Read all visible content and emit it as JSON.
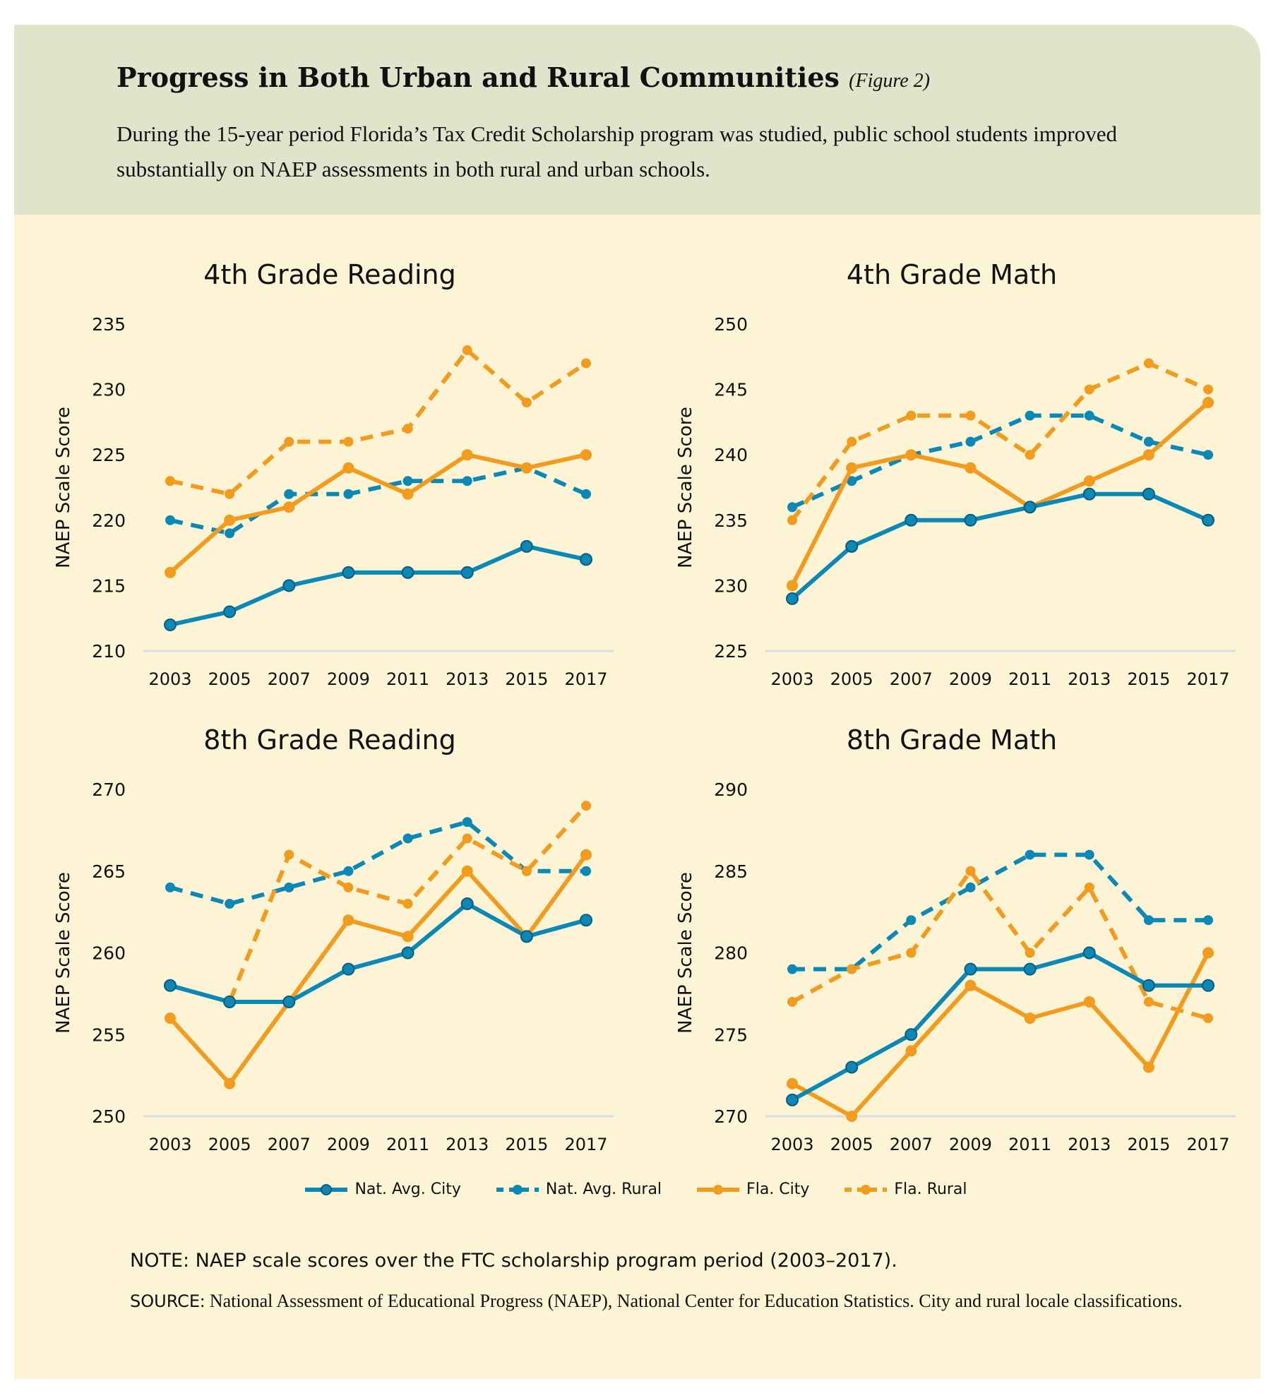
{
  "header": {
    "title": "Progress in Both Urban and Rural Communities",
    "figure_label": "(Figure 2)",
    "subtitle": "During the 15-year period Florida’s Tax Credit Scholarship program was studied, public school students improved substantially on NAEP assessments in both rural and urban schools."
  },
  "colors": {
    "header_bg": "#e1e3cb",
    "panel_bg": "#fdf3d5",
    "blue": "#0a88b6",
    "orange": "#f29b1d"
  },
  "legend": [
    {
      "name": "Nat. Avg. City",
      "color": "#0a88b6",
      "dashed": false
    },
    {
      "name": "Nat. Avg. Rural",
      "color": "#0a88b6",
      "dashed": true
    },
    {
      "name": "Fla. City",
      "color": "#f29b1d",
      "dashed": false
    },
    {
      "name": "Fla. Rural",
      "color": "#f29b1d",
      "dashed": true
    }
  ],
  "chart_data": [
    {
      "type": "line",
      "title": "4th Grade Reading",
      "ylabel": "NAEP Scale Score",
      "xlabel": "",
      "categories": [
        "2003",
        "2005",
        "2007",
        "2009",
        "2011",
        "2013",
        "2015",
        "2017"
      ],
      "ylim": [
        210,
        235
      ],
      "yticks": [
        210,
        215,
        220,
        225,
        230,
        235
      ],
      "grid": false,
      "series": [
        {
          "name": "Nat. Avg. City",
          "values": [
            212,
            213,
            215,
            216,
            216,
            216,
            218,
            217
          ]
        },
        {
          "name": "Nat. Avg. Rural",
          "values": [
            220,
            219,
            222,
            222,
            223,
            223,
            224,
            222
          ]
        },
        {
          "name": "Fla. City",
          "values": [
            216,
            220,
            221,
            224,
            222,
            225,
            224,
            225
          ]
        },
        {
          "name": "Fla. Rural",
          "values": [
            223,
            222,
            226,
            226,
            227,
            233,
            229,
            232
          ]
        }
      ]
    },
    {
      "type": "line",
      "title": "4th Grade Math",
      "ylabel": "NAEP Scale Score",
      "xlabel": "",
      "categories": [
        "2003",
        "2005",
        "2007",
        "2009",
        "2011",
        "2013",
        "2015",
        "2017"
      ],
      "ylim": [
        225,
        250
      ],
      "yticks": [
        225,
        230,
        235,
        240,
        245,
        250
      ],
      "grid": false,
      "series": [
        {
          "name": "Nat. Avg. City",
          "values": [
            229,
            233,
            235,
            235,
            236,
            237,
            237,
            235
          ]
        },
        {
          "name": "Nat. Avg. Rural",
          "values": [
            236,
            238,
            240,
            241,
            243,
            243,
            241,
            240
          ]
        },
        {
          "name": "Fla. City",
          "values": [
            230,
            239,
            240,
            239,
            236,
            238,
            240,
            244
          ]
        },
        {
          "name": "Fla. Rural",
          "values": [
            235,
            241,
            243,
            243,
            240,
            245,
            247,
            245
          ]
        }
      ]
    },
    {
      "type": "line",
      "title": "8th Grade Reading",
      "ylabel": "NAEP Scale Score",
      "xlabel": "",
      "categories": [
        "2003",
        "2005",
        "2007",
        "2009",
        "2011",
        "2013",
        "2015",
        "2017"
      ],
      "ylim": [
        250,
        270
      ],
      "yticks": [
        250,
        255,
        260,
        265,
        270
      ],
      "grid": false,
      "series": [
        {
          "name": "Nat. Avg. City",
          "values": [
            258,
            257,
            257,
            259,
            260,
            263,
            261,
            262
          ]
        },
        {
          "name": "Nat. Avg. Rural",
          "values": [
            264,
            263,
            264,
            265,
            267,
            268,
            265,
            265
          ]
        },
        {
          "name": "Fla. City",
          "values": [
            256,
            252,
            257,
            262,
            261,
            265,
            261,
            266
          ]
        },
        {
          "name": "Fla. Rural",
          "values": [
            258,
            257,
            266,
            264,
            263,
            267,
            265,
            269
          ]
        }
      ]
    },
    {
      "type": "line",
      "title": "8th Grade Math",
      "ylabel": "NAEP Scale Score",
      "xlabel": "",
      "categories": [
        "2003",
        "2005",
        "2007",
        "2009",
        "2011",
        "2013",
        "2015",
        "2017"
      ],
      "ylim": [
        270,
        290
      ],
      "yticks": [
        270,
        275,
        280,
        285,
        290
      ],
      "grid": false,
      "series": [
        {
          "name": "Nat. Avg. City",
          "values": [
            271,
            273,
            275,
            279,
            279,
            280,
            278,
            278
          ]
        },
        {
          "name": "Nat. Avg. Rural",
          "values": [
            279,
            279,
            282,
            284,
            286,
            286,
            282,
            282
          ]
        },
        {
          "name": "Fla. City",
          "values": [
            272,
            270,
            274,
            278,
            276,
            277,
            273,
            280
          ]
        },
        {
          "name": "Fla. Rural",
          "values": [
            277,
            279,
            280,
            285,
            280,
            284,
            277,
            276
          ]
        }
      ]
    }
  ],
  "footer": {
    "note": "NOTE: NAEP scale scores over the FTC scholarship program period (2003–2017).",
    "source_label": "SOURCE",
    "source_text": ": National Assessment of Educational Progress (NAEP), National Center for Education Statistics. City and rural locale classifications."
  }
}
